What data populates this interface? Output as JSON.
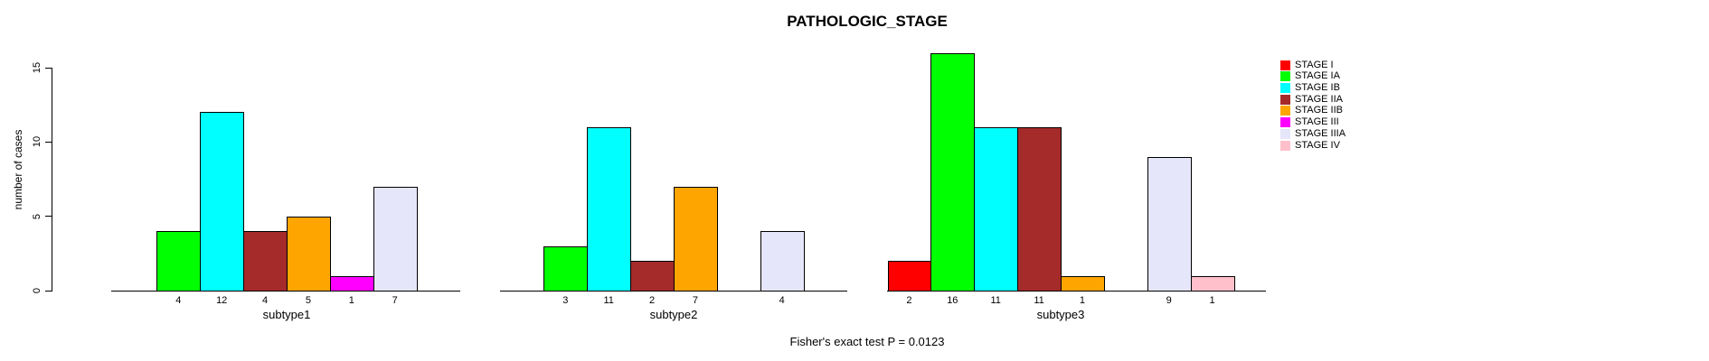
{
  "chart_data": {
    "type": "bar",
    "title": "PATHOLOGIC_STAGE",
    "ylabel": "number of cases",
    "ylim": [
      0,
      15
    ],
    "yticks": [
      0,
      5,
      10,
      15
    ],
    "grid": false,
    "legend_position": "right",
    "annotation": "Fisher's exact test P = 0.0123",
    "stages": [
      {
        "name": "STAGE I",
        "color": "#FF0000"
      },
      {
        "name": "STAGE IA",
        "color": "#00FF00"
      },
      {
        "name": "STAGE IB",
        "color": "#00FFFF"
      },
      {
        "name": "STAGE IIA",
        "color": "#A52A2A"
      },
      {
        "name": "STAGE IIB",
        "color": "#FFA500"
      },
      {
        "name": "STAGE III",
        "color": "#FF00FF"
      },
      {
        "name": "STAGE IIIA",
        "color": "#E6E6FA"
      },
      {
        "name": "STAGE IV",
        "color": "#FFC0CB"
      }
    ],
    "categories": [
      "subtype1",
      "subtype2",
      "subtype3"
    ],
    "series_note": "values per group, aligned with stages[]; zero = empty slot (no bar, no label)",
    "groups": [
      {
        "label": "subtype1",
        "values": [
          0,
          4,
          12,
          4,
          5,
          1,
          7,
          0
        ]
      },
      {
        "label": "subtype2",
        "values": [
          0,
          3,
          11,
          2,
          7,
          0,
          4,
          0
        ]
      },
      {
        "label": "subtype3",
        "values": [
          2,
          16,
          11,
          11,
          1,
          0,
          9,
          1
        ]
      }
    ],
    "bar_value_labels": true
  }
}
